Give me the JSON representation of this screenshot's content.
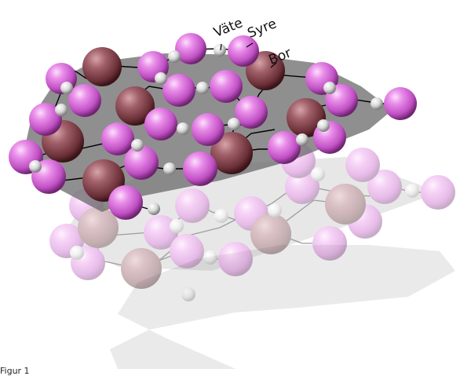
{
  "labels": {
    "vate": "Väte",
    "syre": "Syre",
    "bor": "Bor"
  },
  "caption": "Figur 1",
  "colors": {
    "oxygen": "#d86ad8",
    "boron": "#8a4650",
    "hydrogen": "#e2e2e2",
    "plane": "#707070",
    "bond": "#000000"
  }
}
